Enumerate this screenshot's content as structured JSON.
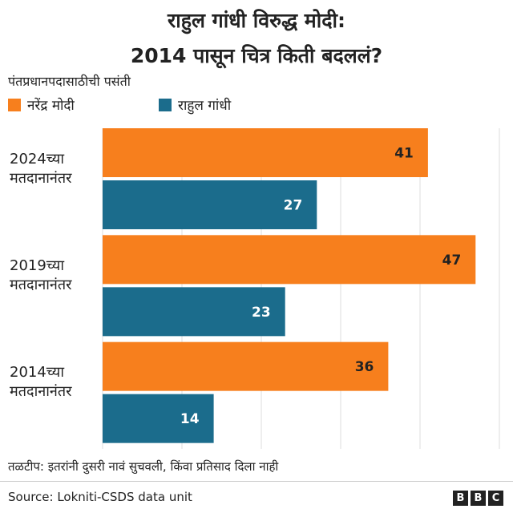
{
  "chart_data": {
    "type": "bar",
    "orientation": "horizontal",
    "title": [
      "राहुल गांधी विरुद्ध मोदी:",
      "2014 पासून चित्र किती बदललं?"
    ],
    "subtitle": "पंतप्रधानपदासाठीची पसंती",
    "categories": [
      "2024च्या मतदानानंतर",
      "2019च्या मतदानानंतर",
      "2014च्या मतदानानंतर"
    ],
    "series": [
      {
        "name": "नरेंद्र मोदी",
        "color": "#f77f1d",
        "label_color": "#222",
        "values": [
          41,
          47,
          36
        ]
      },
      {
        "name": "राहुल गांधी",
        "color": "#1b6c8c",
        "label_color": "#fff",
        "values": [
          27,
          23,
          14
        ]
      }
    ],
    "xlim": [
      0,
      50
    ],
    "xticks": [
      0,
      10,
      20,
      30,
      40,
      50
    ],
    "grid": true,
    "note": "तळटीप: इतरांनी दुसरी नावं सुचवली, किंवा प्रतिसाद दिला नाही",
    "source": "Source: Lokniti-CSDS data unit",
    "logo": [
      "B",
      "B",
      "C"
    ]
  }
}
